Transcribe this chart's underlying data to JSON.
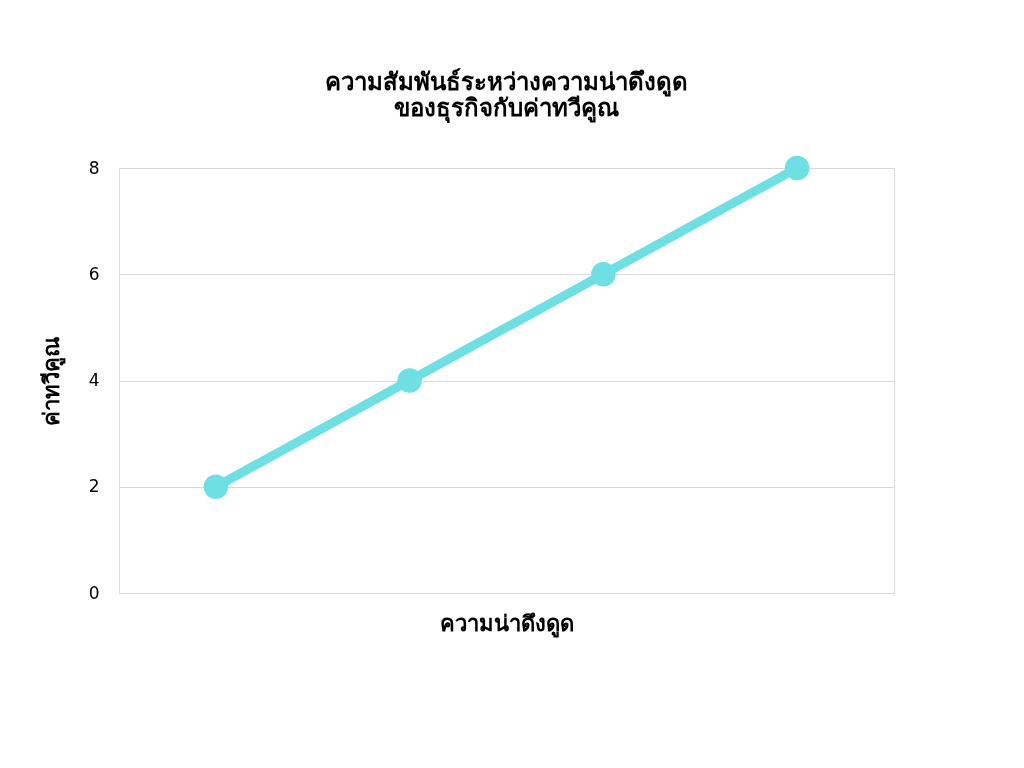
{
  "chart_data": {
    "type": "line",
    "title": "ความสัมพันธ์ระหว่างความน่าดึงดูด\nของธุรกิจกับค่าทวีคูณ",
    "xlabel": "ความน่าดึงดูด",
    "ylabel": "ค่าทวีคูณ",
    "categories": [
      null,
      null,
      null,
      null
    ],
    "series": [
      {
        "color": "#6ee0e3",
        "values": [
          2,
          4,
          6,
          8
        ]
      }
    ],
    "ylim": [
      0,
      8
    ],
    "yticks": [
      0,
      2,
      4,
      6,
      8
    ],
    "grid": "y",
    "marker": "circle",
    "tick_labels": "y"
  }
}
